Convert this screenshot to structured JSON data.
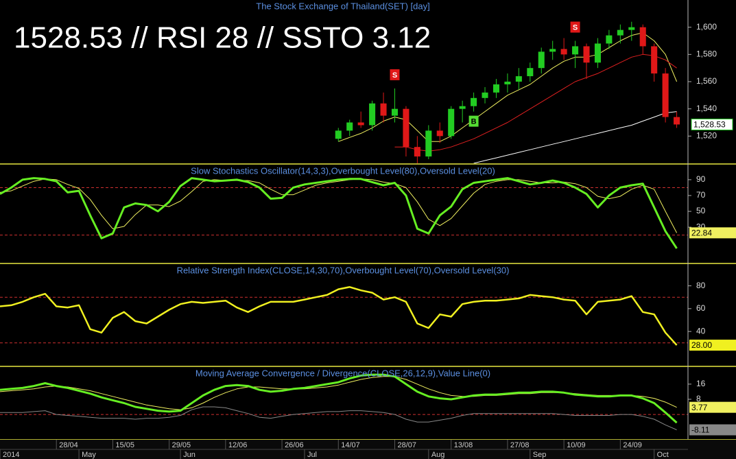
{
  "headline": "1528.53 // RSI 28 // SSTO 3.12",
  "chart_data": [
    {
      "type": "candlestick",
      "title": "The Stock Exchange of Thailand(SET) [day]",
      "xlim": [
        0,
        61
      ],
      "ylim": [
        1500,
        1620
      ],
      "yticks": [
        {
          "value": 1520,
          "label": "1,520"
        },
        {
          "value": 1540,
          "label": "1,540"
        },
        {
          "value": 1560,
          "label": "1,560"
        },
        {
          "value": 1580,
          "label": "1,580"
        },
        {
          "value": 1600,
          "label": "1,600"
        }
      ],
      "up_color": "#22cc22",
      "down_color": "#e01818",
      "label_color": "#ffffff",
      "x": [
        30,
        31,
        32,
        33,
        34,
        35,
        36,
        37,
        38,
        39,
        40,
        41,
        42,
        43,
        44,
        45,
        46,
        47,
        48,
        49,
        50,
        51,
        52,
        53,
        54,
        55,
        56,
        57,
        58,
        59,
        60
      ],
      "open": [
        1518,
        1524,
        1530,
        1528,
        1544,
        1535,
        1540,
        1512,
        1505,
        1524,
        1520,
        1540,
        1542,
        1548,
        1552,
        1558,
        1560,
        1564,
        1570,
        1582,
        1584,
        1580,
        1586,
        1574,
        1588,
        1594,
        1598,
        1600,
        1586,
        1566,
        1534
      ],
      "high": [
        1526,
        1532,
        1538,
        1546,
        1552,
        1555,
        1542,
        1520,
        1528,
        1530,
        1542,
        1546,
        1552,
        1556,
        1562,
        1566,
        1570,
        1574,
        1585,
        1590,
        1592,
        1590,
        1588,
        1592,
        1598,
        1602,
        1604,
        1602,
        1588,
        1570,
        1538
      ],
      "low": [
        1516,
        1520,
        1526,
        1524,
        1530,
        1530,
        1505,
        1500,
        1503,
        1515,
        1518,
        1530,
        1538,
        1544,
        1548,
        1552,
        1554,
        1560,
        1566,
        1576,
        1576,
        1570,
        1562,
        1570,
        1584,
        1588,
        1590,
        1580,
        1560,
        1530,
        1526
      ],
      "close": [
        1524,
        1530,
        1528,
        1544,
        1535,
        1540,
        1512,
        1505,
        1524,
        1520,
        1540,
        1542,
        1548,
        1552,
        1558,
        1560,
        1564,
        1570,
        1582,
        1584,
        1580,
        1586,
        1574,
        1588,
        1594,
        1598,
        1600,
        1586,
        1566,
        1534,
        1528.53
      ],
      "value_labels": [
        null,
        null,
        null,
        null,
        null,
        null,
        null,
        null,
        null,
        null,
        null,
        null,
        null,
        null,
        null,
        null,
        null,
        null,
        null,
        null,
        null,
        null,
        null,
        null,
        null,
        null,
        null,
        null,
        null,
        null,
        "1,528.53"
      ],
      "signals": [
        {
          "label": "S",
          "x": 35,
          "color": "#e01818",
          "placement": "above"
        },
        {
          "label": "B",
          "x": 42,
          "color": "#55dd33",
          "placement": "below"
        },
        {
          "label": "S",
          "x": 51,
          "color": "#e01818",
          "placement": "above"
        }
      ],
      "series": [
        {
          "color": "#f0f060",
          "width": 1,
          "values": [
            1516,
            1519,
            1522,
            1526,
            1531,
            1534,
            1532,
            1524,
            1516,
            1516,
            1520,
            1526,
            1532,
            1538,
            1544,
            1550,
            1554,
            1558,
            1564,
            1570,
            1575,
            1578,
            1578,
            1580,
            1585,
            1590,
            1594,
            1596,
            1590,
            1580,
            1560
          ]
        },
        {
          "color": "#e02020",
          "width": 1,
          "values": [
            null,
            null,
            null,
            null,
            null,
            1512,
            1512,
            1510,
            1509,
            1510,
            1512,
            1515,
            1518,
            1522,
            1526,
            1530,
            1535,
            1540,
            1545,
            1550,
            1555,
            1560,
            1563,
            1566,
            1570,
            1574,
            1578,
            1580,
            1579,
            1576,
            1570
          ]
        },
        {
          "color": "#ffffff",
          "width": 1,
          "values": [
            null,
            null,
            null,
            null,
            null,
            null,
            null,
            null,
            null,
            null,
            null,
            null,
            1500,
            1502,
            1504,
            1506,
            1508,
            1510,
            1512,
            1514,
            1516,
            1518,
            1520,
            1522,
            1524,
            1526,
            1528,
            1531,
            1534,
            1537,
            1538
          ]
        }
      ]
    },
    {
      "type": "line",
      "title": "Slow Stochastics Oscillator(14,3,3),Overbought Level(80),Oversold Level(20)",
      "xlim": [
        0,
        61
      ],
      "ylim": [
        -15,
        109
      ],
      "yticks": [
        30,
        50,
        70,
        90
      ],
      "levels": [
        80,
        20
      ],
      "series": [
        {
          "color": "#f0f060",
          "width": 1,
          "values": [
            74,
            76,
            82,
            88,
            91,
            90,
            84,
            79,
            65,
            45,
            28,
            31,
            46,
            58,
            58,
            56,
            63,
            75,
            88,
            90,
            89,
            89,
            89,
            86,
            78,
            71,
            71,
            77,
            83,
            86,
            88,
            90,
            91,
            90,
            87,
            85,
            80,
            62,
            40,
            32,
            41,
            57,
            73,
            84,
            88,
            90,
            90,
            88,
            86,
            86,
            87,
            85,
            80,
            69,
            66,
            69,
            78,
            83,
            78,
            50,
            22.84
          ],
          "value_labels": [
            null,
            null,
            null,
            null,
            null,
            null,
            null,
            null,
            null,
            null,
            null,
            null,
            null,
            null,
            null,
            null,
            null,
            null,
            null,
            null,
            null,
            null,
            null,
            null,
            null,
            null,
            null,
            null,
            null,
            null,
            null,
            null,
            null,
            null,
            null,
            null,
            null,
            null,
            null,
            null,
            null,
            null,
            null,
            null,
            null,
            null,
            null,
            null,
            null,
            null,
            null,
            null,
            null,
            null,
            null,
            null,
            null,
            null,
            null,
            null,
            "22.84"
          ]
        },
        {
          "color": "#66ee22",
          "width": 3,
          "values": [
            72,
            80,
            90,
            92,
            91,
            88,
            74,
            76,
            45,
            16,
            22,
            55,
            60,
            58,
            50,
            62,
            82,
            92,
            90,
            88,
            89,
            90,
            87,
            80,
            66,
            67,
            80,
            84,
            86,
            88,
            90,
            91,
            91,
            87,
            83,
            86,
            70,
            28,
            22,
            45,
            56,
            78,
            86,
            88,
            90,
            92,
            88,
            84,
            86,
            89,
            86,
            80,
            72,
            55,
            70,
            80,
            83,
            85,
            55,
            25,
            3.12
          ]
        }
      ]
    },
    {
      "type": "line",
      "title": "Relative Strength Index(CLOSE,14,30,70),Overbought Level(70),Oversold Level(30)",
      "xlim": [
        0,
        61
      ],
      "ylim": [
        10,
        99
      ],
      "yticks": [
        40,
        60,
        80
      ],
      "levels": [
        70,
        30
      ],
      "series": [
        {
          "color": "#f0f020",
          "width": 2.5,
          "values": [
            62,
            63,
            66,
            70,
            73,
            62,
            61,
            63,
            42,
            39,
            52,
            57,
            49,
            47,
            53,
            59,
            64,
            66,
            65,
            66,
            67,
            61,
            57,
            62,
            66,
            66,
            66,
            68,
            70,
            72,
            77,
            79,
            76,
            74,
            68,
            70,
            66,
            47,
            43,
            55,
            53,
            64,
            66,
            67,
            67,
            68,
            69,
            72,
            71,
            70,
            68,
            67,
            55,
            66,
            67,
            68,
            71,
            57,
            55,
            39,
            28
          ],
          "value_labels": [
            null,
            null,
            null,
            null,
            null,
            null,
            null,
            null,
            null,
            null,
            null,
            null,
            null,
            null,
            null,
            null,
            null,
            null,
            null,
            null,
            null,
            null,
            null,
            null,
            null,
            null,
            null,
            null,
            null,
            null,
            null,
            null,
            null,
            null,
            null,
            null,
            null,
            null,
            null,
            null,
            null,
            null,
            null,
            null,
            null,
            null,
            null,
            null,
            null,
            null,
            null,
            null,
            null,
            null,
            null,
            null,
            null,
            null,
            null,
            null,
            "28.00"
          ]
        }
      ]
    },
    {
      "type": "line",
      "title": "Moving Average Convergence / Divergence(CLOSE,26,12,9),Value Line(0)",
      "xlim": [
        0,
        61
      ],
      "ylim": [
        -13,
        25
      ],
      "yticks": [
        8,
        16
      ],
      "levels": [
        0
      ],
      "xticks": [
        {
          "value": 5,
          "label": "28/04"
        },
        {
          "value": 10,
          "label": "15/05"
        },
        {
          "value": 15,
          "label": "29/05"
        },
        {
          "value": 20,
          "label": "12/06"
        },
        {
          "value": 25,
          "label": "26/06"
        },
        {
          "value": 30,
          "label": "14/07"
        },
        {
          "value": 35,
          "label": "28/07"
        },
        {
          "value": 40,
          "label": "13/08"
        },
        {
          "value": 45,
          "label": "27/08"
        },
        {
          "value": 50,
          "label": "10/09"
        },
        {
          "value": 55,
          "label": "24/09"
        }
      ],
      "month_ticks": [
        {
          "value": 0,
          "label": "2014"
        },
        {
          "value": 7,
          "label": "May"
        },
        {
          "value": 16,
          "label": "Jun"
        },
        {
          "value": 27,
          "label": "Jul"
        },
        {
          "value": 38,
          "label": "Aug"
        },
        {
          "value": 47,
          "label": "Sep"
        },
        {
          "value": 58,
          "label": "Oct"
        }
      ],
      "series": [
        {
          "color": "#888888",
          "width": 1,
          "values": [
            1,
            1,
            1,
            1.5,
            2,
            0,
            -0.5,
            -1,
            -1.5,
            -2,
            -2,
            -2,
            -2.5,
            -2,
            -2,
            -1.5,
            -0.5,
            2.5,
            4,
            4,
            3.5,
            2,
            0.5,
            -1.5,
            -2,
            -1,
            0,
            0.5,
            1,
            1.5,
            1.5,
            2,
            2,
            1.5,
            1,
            0,
            -2.5,
            -4,
            -4,
            -3,
            -2,
            -0.5,
            0.5,
            0.5,
            0.5,
            0.5,
            0.5,
            0.5,
            0.5,
            0.5,
            0,
            -0.5,
            -0.5,
            -0.5,
            -0.5,
            0,
            0,
            -1,
            -2.5,
            -5.5,
            -8.11
          ],
          "value_labels": [
            null,
            null,
            null,
            null,
            null,
            null,
            null,
            null,
            null,
            null,
            null,
            null,
            null,
            null,
            null,
            null,
            null,
            null,
            null,
            null,
            null,
            null,
            null,
            null,
            null,
            null,
            null,
            null,
            null,
            null,
            null,
            null,
            null,
            null,
            null,
            null,
            null,
            null,
            null,
            null,
            null,
            null,
            null,
            null,
            null,
            null,
            null,
            null,
            null,
            null,
            null,
            null,
            null,
            null,
            null,
            null,
            null,
            null,
            null,
            null,
            "-8.11"
          ]
        },
        {
          "color": "#f0f060",
          "width": 1,
          "values": [
            12,
            12.5,
            13,
            13.5,
            14.5,
            15,
            14.5,
            13.5,
            12.5,
            11,
            9.5,
            8,
            6.5,
            5,
            4,
            3,
            2.5,
            3.5,
            6,
            9,
            11.5,
            13.5,
            14.5,
            14.5,
            14,
            13.5,
            13.5,
            13.5,
            14,
            14.5,
            15.5,
            17,
            18.5,
            19.5,
            20,
            20,
            18.5,
            16,
            13.5,
            11.5,
            10,
            9.5,
            9.5,
            10,
            10,
            10.5,
            11,
            11,
            11.5,
            11.5,
            11.5,
            11,
            10.5,
            10,
            10,
            10,
            10,
            9.5,
            8.5,
            6.5,
            3.77
          ],
          "value_labels": [
            null,
            null,
            null,
            null,
            null,
            null,
            null,
            null,
            null,
            null,
            null,
            null,
            null,
            null,
            null,
            null,
            null,
            null,
            null,
            null,
            null,
            null,
            null,
            null,
            null,
            null,
            null,
            null,
            null,
            null,
            null,
            null,
            null,
            null,
            null,
            null,
            null,
            null,
            null,
            null,
            null,
            null,
            null,
            null,
            null,
            null,
            null,
            null,
            null,
            null,
            null,
            null,
            null,
            null,
            null,
            null,
            null,
            null,
            null,
            null,
            "3.77"
          ]
        },
        {
          "color": "#66ee22",
          "width": 3,
          "values": [
            13,
            13.5,
            14,
            15,
            16.5,
            15,
            14,
            12.5,
            11,
            9,
            7.5,
            6,
            4,
            3,
            2,
            1.5,
            2,
            6,
            10,
            13,
            15,
            15.5,
            15,
            13,
            12,
            12.5,
            13.5,
            14,
            15,
            16,
            17,
            19,
            20.5,
            21,
            21,
            20,
            16,
            12,
            9.5,
            8.5,
            8,
            9,
            10,
            10.5,
            10.5,
            11,
            11.5,
            11.5,
            12,
            12,
            11.5,
            10.5,
            10,
            9.5,
            9.5,
            10,
            10,
            8.5,
            6,
            1,
            -4.34
          ]
        }
      ]
    }
  ]
}
